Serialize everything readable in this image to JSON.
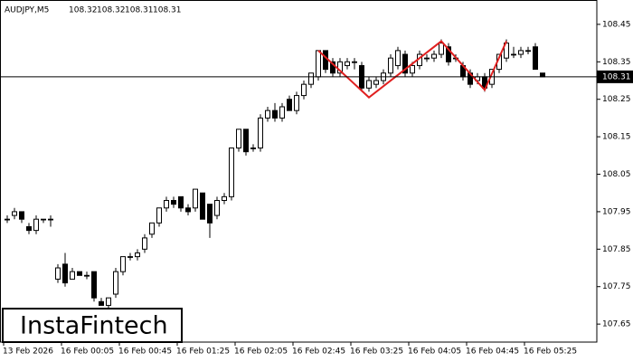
{
  "chart_data": {
    "type": "candlestick",
    "symbol": "AUDJPY,M5",
    "header_ohlc": [
      108.32,
      108.32,
      108.31,
      108.31
    ],
    "logo": "InstaFintech",
    "categories": [
      "13 Feb 2026",
      null,
      null,
      null,
      null,
      null,
      null,
      null,
      "16 Feb 00:05",
      null,
      null,
      null,
      null,
      null,
      null,
      null,
      "16 Feb 00:45",
      null,
      null,
      null,
      null,
      null,
      null,
      null,
      "16 Feb 01:25",
      null,
      null,
      null,
      null,
      null,
      null,
      null,
      "16 Feb 02:05",
      null,
      null,
      null,
      null,
      null,
      null,
      null,
      "16 Feb 02:45",
      null,
      null,
      null,
      null,
      null,
      null,
      null,
      "16 Feb 03:25",
      null,
      null,
      null,
      null,
      null,
      null,
      null,
      "16 Feb 04:05",
      null,
      null,
      null,
      null,
      null,
      null,
      null,
      "16 Feb 04:45",
      null,
      null,
      null,
      null,
      null,
      null,
      null,
      "16 Feb 05:25",
      null,
      null
    ],
    "ohlc": [
      [
        107.93,
        107.94,
        107.92,
        107.93
      ],
      [
        107.94,
        107.96,
        107.93,
        107.95
      ],
      [
        107.95,
        107.95,
        107.92,
        107.93
      ],
      [
        107.91,
        107.92,
        107.89,
        107.9
      ],
      [
        107.9,
        107.94,
        107.89,
        107.93
      ],
      [
        107.93,
        107.93,
        107.92,
        107.93
      ],
      [
        107.93,
        107.94,
        107.91,
        107.93
      ],
      [
        107.77,
        107.81,
        107.76,
        107.8
      ],
      [
        107.81,
        107.84,
        107.75,
        107.76
      ],
      [
        107.77,
        107.8,
        107.77,
        107.79
      ],
      [
        107.79,
        107.79,
        107.78,
        107.78
      ],
      [
        107.78,
        107.79,
        107.77,
        107.78
      ],
      [
        107.79,
        107.79,
        107.71,
        107.72
      ],
      [
        107.71,
        107.72,
        107.7,
        107.7
      ],
      [
        107.7,
        107.72,
        107.69,
        107.72
      ],
      [
        107.73,
        107.8,
        107.72,
        107.79
      ],
      [
        107.79,
        107.83,
        107.78,
        107.83
      ],
      [
        107.83,
        107.84,
        107.82,
        107.83
      ],
      [
        107.83,
        107.85,
        107.82,
        107.84
      ],
      [
        107.85,
        107.89,
        107.84,
        107.88
      ],
      [
        107.89,
        107.92,
        107.88,
        107.92
      ],
      [
        107.92,
        107.96,
        107.91,
        107.96
      ],
      [
        107.96,
        107.99,
        107.95,
        107.98
      ],
      [
        107.98,
        107.99,
        107.96,
        107.97
      ],
      [
        107.99,
        107.99,
        107.95,
        107.96
      ],
      [
        107.96,
        107.97,
        107.94,
        107.95
      ],
      [
        107.96,
        108.01,
        107.95,
        108.01
      ],
      [
        108.0,
        108.0,
        107.93,
        107.93
      ],
      [
        107.97,
        107.97,
        107.88,
        107.92
      ],
      [
        107.94,
        107.99,
        107.93,
        107.98
      ],
      [
        107.98,
        108.0,
        107.97,
        107.99
      ],
      [
        107.99,
        108.12,
        107.98,
        108.12
      ],
      [
        108.12,
        108.17,
        108.11,
        108.17
      ],
      [
        108.17,
        108.17,
        108.1,
        108.11
      ],
      [
        108.12,
        108.13,
        108.11,
        108.12
      ],
      [
        108.12,
        108.21,
        108.11,
        108.2
      ],
      [
        108.2,
        108.23,
        108.19,
        108.22
      ],
      [
        108.22,
        108.24,
        108.19,
        108.2
      ],
      [
        108.2,
        108.24,
        108.19,
        108.23
      ],
      [
        108.25,
        108.26,
        108.22,
        108.22
      ],
      [
        108.22,
        108.27,
        108.21,
        108.26
      ],
      [
        108.26,
        108.3,
        108.25,
        108.29
      ],
      [
        108.29,
        108.32,
        108.28,
        108.32
      ],
      [
        108.31,
        108.38,
        108.3,
        108.38
      ],
      [
        108.38,
        108.38,
        108.32,
        108.33
      ],
      [
        108.35,
        108.36,
        108.31,
        108.32
      ],
      [
        108.32,
        108.36,
        108.31,
        108.35
      ],
      [
        108.34,
        108.36,
        108.33,
        108.35
      ],
      [
        108.35,
        108.36,
        108.33,
        108.35
      ],
      [
        108.34,
        108.35,
        108.27,
        108.28
      ],
      [
        108.28,
        108.31,
        108.27,
        108.3
      ],
      [
        108.29,
        108.31,
        108.28,
        108.3
      ],
      [
        108.3,
        108.33,
        108.29,
        108.32
      ],
      [
        108.32,
        108.37,
        108.31,
        108.36
      ],
      [
        108.34,
        108.39,
        108.33,
        108.38
      ],
      [
        108.37,
        108.38,
        108.31,
        108.32
      ],
      [
        108.32,
        108.35,
        108.31,
        108.34
      ],
      [
        108.34,
        108.38,
        108.33,
        108.37
      ],
      [
        108.36,
        108.37,
        108.35,
        108.36
      ],
      [
        108.36,
        108.38,
        108.35,
        108.37
      ],
      [
        108.37,
        108.41,
        108.36,
        108.4
      ],
      [
        108.39,
        108.4,
        108.34,
        108.35
      ],
      [
        108.36,
        108.37,
        108.35,
        108.36
      ],
      [
        108.34,
        108.35,
        108.3,
        108.31
      ],
      [
        108.32,
        108.33,
        108.28,
        108.29
      ],
      [
        108.3,
        108.32,
        108.29,
        108.31
      ],
      [
        108.31,
        108.32,
        108.27,
        108.28
      ],
      [
        108.29,
        108.33,
        108.28,
        108.33
      ],
      [
        108.33,
        108.37,
        108.32,
        108.37
      ],
      [
        108.36,
        108.41,
        108.35,
        108.4
      ],
      [
        108.37,
        108.39,
        108.36,
        108.37
      ],
      [
        108.37,
        108.39,
        108.36,
        108.38
      ],
      [
        108.38,
        108.39,
        108.37,
        108.38
      ],
      [
        108.39,
        108.4,
        108.33,
        108.33
      ],
      [
        108.32,
        108.32,
        108.31,
        108.31
      ]
    ],
    "up_color": "#ffffff",
    "down_color": "#000000",
    "ylim": [
      107.602,
      108.515
    ],
    "yticks": [
      108.45,
      108.35,
      108.25,
      108.15,
      108.05,
      107.95,
      107.85,
      107.75,
      107.65
    ],
    "price_line": 108.31,
    "pattern": {
      "color": "#e02020",
      "x": [
        43,
        50,
        60,
        66,
        69
      ],
      "y": [
        108.38,
        108.255,
        108.405,
        108.275,
        108.405
      ]
    }
  }
}
